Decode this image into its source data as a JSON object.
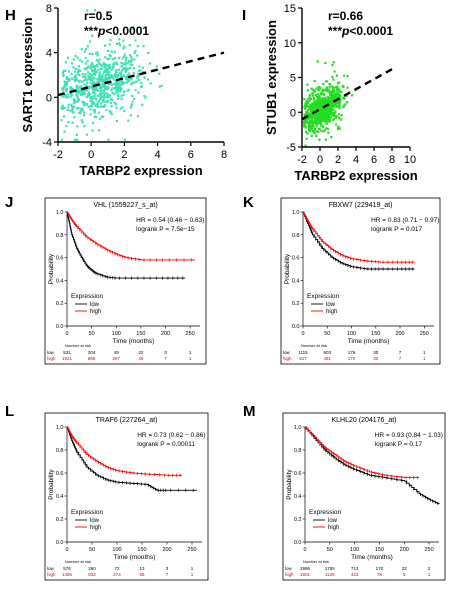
{
  "chart_data": [
    {
      "panel": "H",
      "type": "scatter",
      "xlabel": "TARBP2 expression",
      "ylabel": "SART1 expression",
      "xticks": [
        "-2",
        "0",
        "2",
        "4",
        "6",
        "8"
      ],
      "yticks": [
        "-4",
        "0",
        "4",
        "8"
      ],
      "xlim": [
        -2,
        8
      ],
      "ylim": [
        -4,
        8
      ],
      "annotation": [
        "r=0.5",
        "***",
        "p",
        "<0.0001"
      ],
      "point_color": "#3fe0b4",
      "trend": {
        "x": [
          -2,
          8
        ],
        "y": [
          0.2,
          4.0
        ]
      }
    },
    {
      "panel": "I",
      "type": "scatter",
      "xlabel": "TARBP2 expression",
      "ylabel": "STUB1 expression",
      "xticks": [
        "-2",
        "0",
        "2",
        "4",
        "6",
        "8",
        "10"
      ],
      "yticks": [
        "-5",
        "0",
        "5",
        "10",
        "15"
      ],
      "xlim": [
        -2,
        10
      ],
      "ylim": [
        -5,
        15
      ],
      "annotation": [
        "r=0.66",
        "***",
        "p",
        "<0.0001"
      ],
      "point_color": "#22dd22",
      "trend": {
        "x": [
          -2,
          8
        ],
        "y": [
          -1.0,
          6.2
        ]
      }
    },
    {
      "panel": "J",
      "type": "line",
      "title": "VHL (1559227_s_at)",
      "hr": "HR = 0.54 (0.46 − 0.63)",
      "logrank": "logrank P = 7.5e−15",
      "xlabel": "Time (months)",
      "ylabel": "Probability",
      "xticks": [
        "0",
        "50",
        "100",
        "150",
        "200",
        "250"
      ],
      "yticks": [
        "0.0",
        "0.2",
        "0.4",
        "0.6",
        "0.8",
        "1.0"
      ],
      "xlim": [
        0,
        270
      ],
      "ylim": [
        0,
        1
      ],
      "legend_title": "Expression",
      "legend": [
        "low",
        "high"
      ],
      "at_risk_label": "Number at risk",
      "at_risk": {
        "low": [
          "531",
          "204",
          "49",
          "22",
          "3",
          "1"
        ],
        "high": [
          "1521",
          "868",
          "297",
          "46",
          "7",
          "1"
        ]
      },
      "series": [
        {
          "name": "low",
          "color": "#000000",
          "x": [
            0,
            5,
            10,
            20,
            30,
            40,
            50,
            60,
            80,
            100,
            150,
            200,
            240
          ],
          "y": [
            1,
            0.9,
            0.8,
            0.68,
            0.6,
            0.53,
            0.49,
            0.46,
            0.43,
            0.42,
            0.42,
            0.42,
            0.42
          ]
        },
        {
          "name": "high",
          "color": "#ff0000",
          "x": [
            0,
            10,
            20,
            40,
            60,
            80,
            100,
            120,
            150,
            200,
            260
          ],
          "y": [
            1,
            0.93,
            0.87,
            0.78,
            0.72,
            0.67,
            0.63,
            0.6,
            0.58,
            0.58,
            0.58
          ]
        }
      ]
    },
    {
      "panel": "K",
      "type": "line",
      "title": "FBXW7 (229419_at)",
      "hr": "HR = 0.83 (0.71 − 0.97)",
      "logrank": "logrank P = 0.017",
      "xlabel": "Time (months)",
      "ylabel": "Probability",
      "xticks": [
        "0",
        "50",
        "100",
        "150",
        "200",
        "250"
      ],
      "yticks": [
        "0.0",
        "0.2",
        "0.4",
        "0.6",
        "0.8",
        "1.0"
      ],
      "xlim": [
        0,
        270
      ],
      "ylim": [
        0,
        1
      ],
      "legend_title": "Expression",
      "legend": [
        "low",
        "high"
      ],
      "at_risk_label": "Number at risk",
      "at_risk": {
        "low": [
          "1115",
          "603",
          "176",
          "30",
          "7",
          "1"
        ],
        "high": [
          "917",
          "491",
          "170",
          "30",
          "7",
          "1"
        ]
      },
      "series": [
        {
          "name": "low",
          "color": "#000000",
          "x": [
            0,
            10,
            20,
            40,
            60,
            80,
            100,
            130,
            160,
            200,
            230
          ],
          "y": [
            1,
            0.9,
            0.8,
            0.68,
            0.6,
            0.55,
            0.52,
            0.5,
            0.5,
            0.5,
            0.5
          ]
        },
        {
          "name": "high",
          "color": "#ff0000",
          "x": [
            0,
            10,
            20,
            40,
            60,
            80,
            100,
            130,
            160,
            200,
            230
          ],
          "y": [
            1,
            0.92,
            0.85,
            0.74,
            0.67,
            0.62,
            0.59,
            0.57,
            0.56,
            0.56,
            0.56
          ]
        }
      ]
    },
    {
      "panel": "L",
      "type": "line",
      "title": "TRAF6 (227264_at)",
      "hr": "HR = 0.73 (0.62 − 0.86)",
      "logrank": "logrank P = 0.00011",
      "xlabel": "Time (months)",
      "ylabel": "Probability",
      "xticks": [
        "0",
        "50",
        "100",
        "150",
        "200",
        "250"
      ],
      "yticks": [
        "0.0",
        "0.2",
        "0.4",
        "0.6",
        "0.8",
        "1.0"
      ],
      "xlim": [
        0,
        270
      ],
      "ylim": [
        0,
        1
      ],
      "legend_title": "Expression",
      "legend": [
        "low",
        "high"
      ],
      "at_risk_label": "Number at risk",
      "at_risk": {
        "low": [
          "576",
          "260",
          "72",
          "13",
          "3",
          "1"
        ],
        "high": [
          "1456",
          "832",
          "274",
          "55",
          "7",
          "1"
        ]
      },
      "series": [
        {
          "name": "low",
          "color": "#000000",
          "x": [
            0,
            10,
            20,
            40,
            60,
            80,
            100,
            130,
            160,
            180,
            200,
            260
          ],
          "y": [
            1,
            0.88,
            0.78,
            0.65,
            0.58,
            0.54,
            0.52,
            0.51,
            0.5,
            0.45,
            0.45,
            0.45
          ]
        },
        {
          "name": "high",
          "color": "#ff0000",
          "x": [
            0,
            10,
            20,
            40,
            60,
            80,
            100,
            130,
            160,
            200,
            230
          ],
          "y": [
            1,
            0.92,
            0.86,
            0.76,
            0.7,
            0.65,
            0.62,
            0.6,
            0.59,
            0.58,
            0.58
          ]
        }
      ]
    },
    {
      "panel": "M",
      "type": "line",
      "title": "KLHL20 (204176_at)",
      "hr": "HR = 0.93 (0.84 − 1.03)",
      "logrank": "logrank P = 0.17",
      "xlabel": "Time (months)",
      "ylabel": "Probability",
      "xticks": [
        "0",
        "50",
        "100",
        "150",
        "200",
        "250"
      ],
      "yticks": [
        "0.0",
        "0.2",
        "0.4",
        "0.6",
        "0.8",
        "1.0"
      ],
      "xlim": [
        0,
        270
      ],
      "ylim": [
        0,
        1
      ],
      "legend_title": "Expression",
      "legend": [
        "low",
        "high"
      ],
      "at_risk_label": "Number at risk",
      "at_risk": {
        "low": [
          "2996",
          "1755",
          "713",
          "170",
          "22",
          "2"
        ],
        "high": [
          "1601",
          "1126",
          "423",
          "78",
          "5",
          "1"
        ]
      },
      "series": [
        {
          "name": "low",
          "color": "#000000",
          "x": [
            0,
            20,
            40,
            60,
            80,
            100,
            130,
            160,
            200,
            230,
            250,
            270
          ],
          "y": [
            1,
            0.9,
            0.8,
            0.73,
            0.67,
            0.63,
            0.58,
            0.56,
            0.53,
            0.42,
            0.37,
            0.33
          ]
        },
        {
          "name": "high",
          "color": "#ff0000",
          "x": [
            0,
            20,
            40,
            60,
            80,
            100,
            130,
            160,
            200,
            230
          ],
          "y": [
            1,
            0.91,
            0.82,
            0.76,
            0.7,
            0.66,
            0.61,
            0.58,
            0.56,
            0.56
          ]
        }
      ]
    }
  ]
}
